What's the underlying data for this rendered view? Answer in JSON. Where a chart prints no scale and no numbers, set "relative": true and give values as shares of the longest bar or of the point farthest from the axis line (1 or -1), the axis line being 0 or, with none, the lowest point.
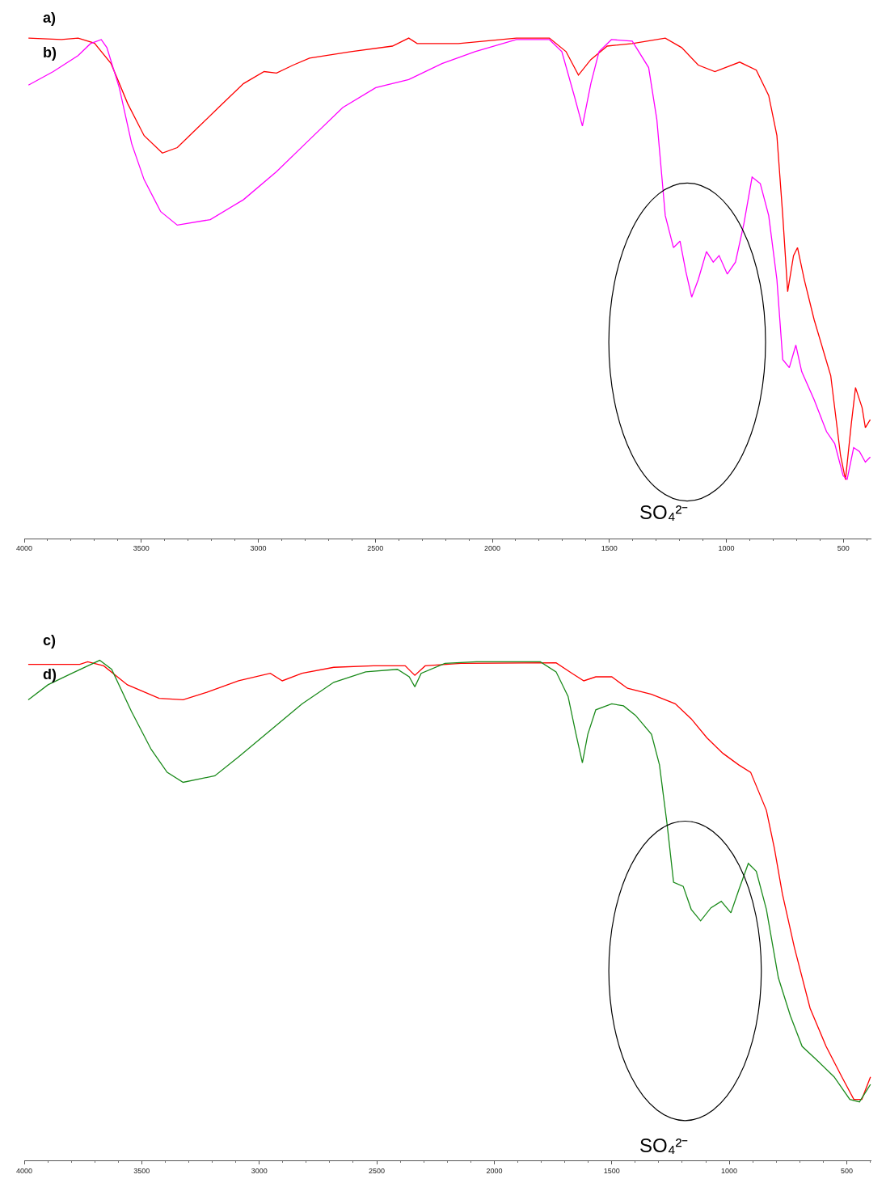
{
  "chart_data": [
    {
      "type": "line",
      "relative": true,
      "xlim": [
        4000,
        380
      ],
      "xticks": [
        4000,
        3500,
        3000,
        2500,
        2000,
        1500,
        1000,
        500
      ],
      "annotations": [
        "a)",
        "b)",
        "SO₄²⁻"
      ],
      "series": [
        {
          "color": "#ff0000",
          "x": [
            3982,
            3841,
            3770,
            3700,
            3629,
            3558,
            3488,
            3410,
            3346,
            3276,
            3170,
            3063,
            2975,
            2922,
            2851,
            2781,
            2604,
            2427,
            2357,
            2321,
            2145,
            1897,
            1756,
            1685,
            1632,
            1579,
            1509,
            1402,
            1261,
            1191,
            1120,
            1049,
            943,
            872,
            819,
            784,
            759,
            738,
            713,
            696,
            667,
            625,
            554,
            512,
            491,
            466,
            448,
            420,
            406,
            385
          ],
          "values": [
            1.0,
            0.997,
            1.0,
            0.99,
            0.949,
            0.869,
            0.805,
            0.77,
            0.781,
            0.813,
            0.861,
            0.909,
            0.933,
            0.93,
            0.946,
            0.96,
            0.973,
            0.984,
            1.0,
            0.989,
            0.989,
            1.0,
            1.0,
            0.973,
            0.926,
            0.957,
            0.984,
            0.989,
            1.0,
            0.981,
            0.946,
            0.933,
            0.952,
            0.936,
            0.885,
            0.805,
            0.645,
            0.493,
            0.565,
            0.581,
            0.517,
            0.437,
            0.325,
            0.165,
            0.117,
            0.229,
            0.301,
            0.261,
            0.221,
            0.237
          ]
        },
        {
          "color": "#ff00ff",
          "x": [
            3982,
            3876,
            3770,
            3717,
            3671,
            3647,
            3594,
            3541,
            3488,
            3417,
            3346,
            3205,
            3063,
            2922,
            2781,
            2639,
            2498,
            2357,
            2215,
            2074,
            1897,
            1756,
            1703,
            1650,
            1615,
            1579,
            1544,
            1491,
            1402,
            1332,
            1297,
            1261,
            1226,
            1198,
            1173,
            1148,
            1120,
            1085,
            1056,
            1031,
            996,
            961,
            925,
            890,
            855,
            819,
            784,
            759,
            731,
            703,
            678,
            625,
            572,
            537,
            501,
            484,
            456,
            431,
            406,
            385
          ],
          "values": [
            0.906,
            0.933,
            0.965,
            0.989,
            0.997,
            0.981,
            0.901,
            0.789,
            0.717,
            0.653,
            0.626,
            0.637,
            0.677,
            0.733,
            0.797,
            0.861,
            0.901,
            0.917,
            0.949,
            0.973,
            0.997,
            0.997,
            0.973,
            0.885,
            0.824,
            0.909,
            0.973,
            0.997,
            0.994,
            0.941,
            0.837,
            0.645,
            0.581,
            0.594,
            0.533,
            0.482,
            0.517,
            0.573,
            0.552,
            0.565,
            0.528,
            0.552,
            0.629,
            0.722,
            0.709,
            0.645,
            0.517,
            0.357,
            0.341,
            0.386,
            0.333,
            0.277,
            0.213,
            0.189,
            0.125,
            0.117,
            0.181,
            0.173,
            0.152,
            0.162
          ]
        }
      ]
    },
    {
      "type": "line",
      "relative": true,
      "xlim": [
        4000,
        395
      ],
      "xticks": [
        4000,
        3500,
        3000,
        2500,
        2000,
        1500,
        1000,
        500
      ],
      "annotations": [
        "c)",
        "d)",
        "SO₄²⁻"
      ],
      "series": [
        {
          "color": "#ff0000",
          "x": [
            3983,
            3764,
            3730,
            3662,
            3561,
            3426,
            3324,
            3223,
            3088,
            2953,
            2902,
            2818,
            2683,
            2514,
            2379,
            2338,
            2294,
            2142,
            1737,
            1669,
            1619,
            1568,
            1500,
            1433,
            1331,
            1230,
            1162,
            1095,
            1027,
            960,
            909,
            842,
            808,
            774,
            723,
            656,
            588,
            521,
            470,
            436,
            399
          ],
          "values": [
            0.992,
            0.992,
            0.997,
            0.989,
            0.951,
            0.924,
            0.921,
            0.936,
            0.959,
            0.974,
            0.959,
            0.974,
            0.986,
            0.989,
            0.989,
            0.97,
            0.989,
            0.994,
            0.995,
            0.974,
            0.959,
            0.967,
            0.967,
            0.944,
            0.932,
            0.913,
            0.883,
            0.845,
            0.814,
            0.791,
            0.776,
            0.7,
            0.624,
            0.533,
            0.426,
            0.304,
            0.228,
            0.167,
            0.122,
            0.122,
            0.167
          ]
        },
        {
          "color": "#1a8a1a",
          "x": [
            3983,
            3899,
            3797,
            3679,
            3628,
            3544,
            3460,
            3392,
            3324,
            3189,
            3088,
            2953,
            2818,
            2683,
            2547,
            2412,
            2362,
            2338,
            2311,
            2210,
            2075,
            1804,
            1737,
            1686,
            1652,
            1625,
            1602,
            1568,
            1500,
            1450,
            1399,
            1331,
            1297,
            1264,
            1237,
            1196,
            1162,
            1122,
            1078,
            1034,
            993,
            960,
            919,
            885,
            842,
            791,
            740,
            690,
            622,
            554,
            487,
            446,
            399
          ],
          "values": [
            0.921,
            0.951,
            0.974,
            1.0,
            0.982,
            0.898,
            0.822,
            0.776,
            0.756,
            0.769,
            0.807,
            0.86,
            0.913,
            0.956,
            0.977,
            0.982,
            0.967,
            0.947,
            0.974,
            0.994,
            0.997,
            0.997,
            0.977,
            0.928,
            0.852,
            0.795,
            0.852,
            0.901,
            0.913,
            0.909,
            0.89,
            0.852,
            0.791,
            0.67,
            0.556,
            0.548,
            0.502,
            0.479,
            0.505,
            0.518,
            0.495,
            0.54,
            0.594,
            0.578,
            0.502,
            0.365,
            0.289,
            0.228,
            0.198,
            0.167,
            0.122,
            0.117,
            0.152
          ]
        }
      ]
    }
  ]
}
